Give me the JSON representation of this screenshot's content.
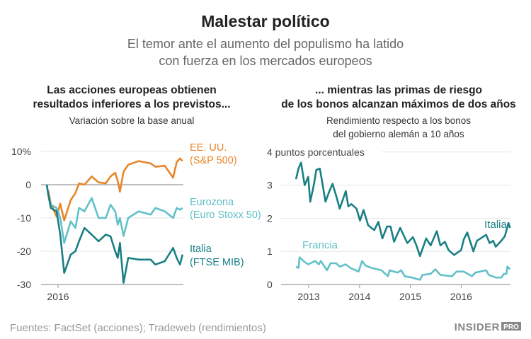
{
  "header": {
    "title": "Malestar político",
    "subtitle_line1": "El temor ante el aumento del populismo ha latido",
    "subtitle_line2": "con fuerza en los mercados europeos"
  },
  "footer": {
    "source": "Fuentes: FactSet (acciones); Tradeweb (rendimientos)",
    "logo": "INSIDER PRO"
  },
  "colors": {
    "us": "#e8862a",
    "euro": "#62c0c8",
    "italy": "#1a7f84",
    "grid": "#e6e6e6",
    "text": "#222222",
    "subtitle": "#666666"
  },
  "chart_data": [
    {
      "type": "line",
      "title_line1": "Las acciones europeas obtienen",
      "title_line2": "resultados inferiores a los previstos...",
      "subtitle": "Variación sobre la base anual",
      "ylim": [
        -30,
        10
      ],
      "yticks": [
        10,
        0,
        -10,
        -20,
        -30
      ],
      "ytick_labels": [
        "10%",
        "0",
        "-10",
        "-20",
        "-30"
      ],
      "xticks": [
        "2016"
      ],
      "grid": true,
      "x": [
        "2015-12-01",
        "2015-12-05",
        "2015-12-12",
        "2015-12-28",
        "2016-01-07",
        "2016-01-18",
        "2016-02-05",
        "2016-02-18",
        "2016-02-28",
        "2016-03-14",
        "2016-04-03",
        "2016-04-22",
        "2016-05-12",
        "2016-05-25",
        "2016-06-07",
        "2016-06-14",
        "2016-06-20",
        "2016-06-30",
        "2016-07-13",
        "2016-08-11",
        "2016-09-13",
        "2016-09-26",
        "2016-10-22",
        "2016-11-14",
        "2016-11-24",
        "2016-12-03",
        "2016-12-10"
      ],
      "series": [
        {
          "name": "EE. UU.",
          "name2": "(S&P 500)",
          "color": "#e8862a",
          "values": [
            null,
            -1.8,
            -5.7,
            -9.6,
            -5.7,
            -10.7,
            -4.6,
            -2.5,
            0.4,
            0,
            2.5,
            0.7,
            0.4,
            2.5,
            3.6,
            1.1,
            -2.1,
            3.9,
            6,
            7.1,
            6.4,
            5.4,
            5.7,
            2.1,
            6.8,
            7.9,
            7.1
          ]
        },
        {
          "name": "Eurozona",
          "name2": "(Euro Stoxx 50)",
          "color": "#62c0c8",
          "values": [
            0,
            -3,
            -6,
            -7,
            -10,
            -17.5,
            -11,
            -13,
            -7,
            -8,
            -4,
            -10,
            -10,
            -6,
            -8,
            -12,
            -10,
            -15.4,
            -10,
            -8,
            -9,
            -7,
            -8,
            -10,
            -7,
            -7.5,
            -7
          ]
        },
        {
          "name": "Italia",
          "name2": "(FTSE MIB)",
          "color": "#1a7f84",
          "values": [
            0,
            -3,
            -7,
            -8,
            -15,
            -26.5,
            -21,
            -20,
            -17,
            -13,
            -15,
            -17,
            -15,
            -15.5,
            -20,
            -22,
            -17.5,
            -29.5,
            -22,
            -22.5,
            -22.5,
            -24,
            -23,
            -19,
            -22,
            -24,
            -21
          ]
        }
      ]
    },
    {
      "type": "line",
      "title_line1": "... mientras las primas de riesgo",
      "title_line2": "de los bonos alcanzan máximos de dos años",
      "subtitle_line1": "Rendimiento respecto a los bonos",
      "subtitle_line2": "del gobierno alemán a 10 años",
      "ylim": [
        0,
        4
      ],
      "yticks": [
        4,
        3,
        2,
        1,
        0
      ],
      "ytick_labels": [
        "4 puntos porcentuales",
        "3",
        "2",
        "1",
        "0"
      ],
      "xticks": [
        "2013",
        "2014",
        "2015",
        "2016"
      ],
      "grid": true,
      "series": [
        {
          "name": "Italia",
          "color": "#1a7f84",
          "x": [
            2012.75,
            2012.8,
            2012.85,
            2012.92,
            2012.99,
            2013.03,
            2013.1,
            2013.15,
            2013.22,
            2013.26,
            2013.33,
            2013.4,
            2013.47,
            2013.54,
            2013.61,
            2013.73,
            2013.78,
            2013.84,
            2013.94,
            2014.01,
            2014.08,
            2014.17,
            2014.29,
            2014.37,
            2014.45,
            2014.54,
            2014.61,
            2014.68,
            2014.8,
            2014.94,
            2015.05,
            2015.12,
            2015.19,
            2015.31,
            2015.4,
            2015.52,
            2015.59,
            2015.68,
            2015.75,
            2015.86,
            2016.0,
            2016.05,
            2016.12,
            2016.24,
            2016.31,
            2016.49,
            2016.56,
            2016.63,
            2016.68,
            2016.79,
            2016.86,
            2016.93,
            2016.96
          ],
          "values": [
            3.18,
            3.5,
            3.68,
            3.0,
            3.25,
            2.5,
            3.0,
            3.46,
            3.5,
            3.14,
            2.5,
            2.79,
            3.04,
            2.68,
            2.29,
            2.82,
            2.36,
            2.43,
            2.29,
            1.93,
            2.25,
            1.79,
            1.64,
            1.89,
            1.39,
            1.75,
            1.75,
            1.29,
            1.71,
            1.25,
            1.43,
            1.18,
            0.86,
            1.39,
            1.18,
            1.61,
            1.18,
            1.29,
            1.04,
            0.89,
            1.04,
            1.36,
            1.57,
            1.0,
            1.32,
            1.5,
            1.25,
            1.32,
            1.14,
            1.32,
            1.46,
            1.86,
            1.71
          ]
        },
        {
          "name": "Francia",
          "color": "#62c0c8",
          "x": [
            2012.75,
            2012.8,
            2012.82,
            2012.92,
            2012.99,
            2013.13,
            2013.2,
            2013.24,
            2013.36,
            2013.43,
            2013.54,
            2013.61,
            2013.73,
            2013.82,
            2013.98,
            2014.05,
            2014.12,
            2014.24,
            2014.43,
            2014.56,
            2014.59,
            2014.75,
            2014.82,
            2014.89,
            2015.03,
            2015.19,
            2015.24,
            2015.4,
            2015.49,
            2015.59,
            2015.82,
            2015.91,
            2016.05,
            2016.21,
            2016.28,
            2016.49,
            2016.54,
            2016.68,
            2016.79,
            2016.84,
            2016.89,
            2016.91,
            2016.96
          ],
          "values": [
            0.54,
            0.5,
            0.82,
            0.68,
            0.61,
            0.71,
            0.61,
            0.71,
            0.43,
            0.64,
            0.64,
            0.54,
            0.61,
            0.5,
            0.39,
            0.71,
            0.57,
            0.5,
            0.43,
            0.25,
            0.43,
            0.36,
            0.43,
            0.25,
            0.21,
            0.14,
            0.29,
            0.32,
            0.46,
            0.29,
            0.25,
            0.39,
            0.39,
            0.25,
            0.36,
            0.43,
            0.29,
            0.21,
            0.21,
            0.32,
            0.32,
            0.54,
            0.46
          ]
        }
      ]
    }
  ]
}
